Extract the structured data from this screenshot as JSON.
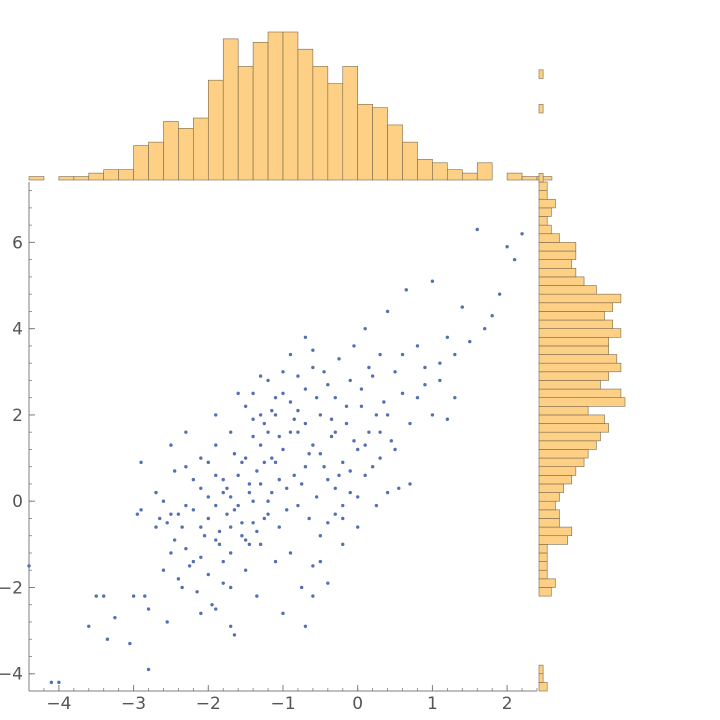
{
  "chart_data": {
    "type": "scatter",
    "title": "",
    "xlabel": "",
    "ylabel": "",
    "xlim": [
      -4.4,
      2.4
    ],
    "ylim": [
      -4.4,
      7.4
    ],
    "x_ticks": [
      -4,
      -3,
      -2,
      -1,
      0,
      1,
      2
    ],
    "y_ticks": [
      -4,
      -2,
      0,
      2,
      4,
      6
    ],
    "x_tick_labels": [
      "−4",
      "−3",
      "−2",
      "−1",
      "0",
      "1",
      "2"
    ],
    "y_tick_labels": [
      "−4",
      "−2",
      "0",
      "2",
      "4",
      "6"
    ],
    "grid": false,
    "legend": "none",
    "colors": {
      "points": "#5470b4",
      "hist_fill": "#fdd086",
      "hist_stroke": "#7a6a4a",
      "axis": "#7f7f7f",
      "tick_text": "#555555"
    },
    "points": [
      [
        -4.4,
        -1.5
      ],
      [
        -4.1,
        -4.2
      ],
      [
        -4.0,
        -4.2
      ],
      [
        -3.6,
        -2.9
      ],
      [
        -3.5,
        -2.2
      ],
      [
        -3.4,
        -2.2
      ],
      [
        -3.35,
        -3.2
      ],
      [
        -3.25,
        -2.7
      ],
      [
        -3.05,
        -3.3
      ],
      [
        -3.0,
        -2.2
      ],
      [
        -2.95,
        -0.3
      ],
      [
        -2.9,
        -0.2
      ],
      [
        -2.85,
        -2.2
      ],
      [
        -2.8,
        -3.9
      ],
      [
        -2.8,
        -2.5
      ],
      [
        -2.7,
        -0.6
      ],
      [
        -2.65,
        -0.4
      ],
      [
        -2.6,
        0.0
      ],
      [
        -2.55,
        -0.5
      ],
      [
        -2.55,
        -2.8
      ],
      [
        -2.5,
        -1.2
      ],
      [
        -2.45,
        -0.9
      ],
      [
        -2.45,
        0.7
      ],
      [
        -2.4,
        -0.3
      ],
      [
        -2.35,
        -0.6
      ],
      [
        -2.35,
        -2.0
      ],
      [
        -2.3,
        -1.1
      ],
      [
        -2.3,
        0.8
      ],
      [
        -2.25,
        -1.5
      ],
      [
        -2.2,
        -0.2
      ],
      [
        -2.15,
        -2.1
      ],
      [
        -2.1,
        0.3
      ],
      [
        -2.1,
        -1.3
      ],
      [
        -2.05,
        -0.8
      ],
      [
        -2.0,
        -0.4
      ],
      [
        -2.0,
        0.9
      ],
      [
        -1.95,
        -2.4
      ],
      [
        -1.9,
        -0.1
      ],
      [
        -1.9,
        1.3
      ],
      [
        -1.85,
        -0.7
      ],
      [
        -1.8,
        -1.9
      ],
      [
        -1.8,
        0.5
      ],
      [
        -1.75,
        -0.3
      ],
      [
        -1.7,
        -1.2
      ],
      [
        -1.7,
        0.1
      ],
      [
        -1.65,
        -3.1
      ],
      [
        -1.6,
        0.6
      ],
      [
        -1.55,
        -0.8
      ],
      [
        -1.5,
        1.0
      ],
      [
        -1.5,
        -1.6
      ],
      [
        -1.45,
        0.2
      ],
      [
        -1.4,
        -0.5
      ],
      [
        -1.4,
        1.5
      ],
      [
        -1.35,
        -2.2
      ],
      [
        -1.3,
        0.4
      ],
      [
        -1.3,
        -1.0
      ],
      [
        -1.25,
        1.8
      ],
      [
        -1.2,
        0.0
      ],
      [
        -1.2,
        -0.3
      ],
      [
        -1.15,
        2.1
      ],
      [
        -1.1,
        -1.4
      ],
      [
        -1.1,
        0.9
      ],
      [
        -1.05,
        -0.6
      ],
      [
        -1.0,
        1.2
      ],
      [
        -1.0,
        -2.6
      ],
      [
        -0.95,
        0.3
      ],
      [
        -0.9,
        2.3
      ],
      [
        -0.9,
        -1.2
      ],
      [
        -0.85,
        0.6
      ],
      [
        -0.8,
        -0.1
      ],
      [
        -0.8,
        1.6
      ],
      [
        -0.75,
        -2.0
      ],
      [
        -0.7,
        0.8
      ],
      [
        -0.7,
        2.6
      ],
      [
        -0.65,
        -0.4
      ],
      [
        -0.6,
        1.3
      ],
      [
        -0.6,
        -1.5
      ],
      [
        -0.55,
        0.1
      ],
      [
        -0.5,
        2.0
      ],
      [
        -0.5,
        -0.8
      ],
      [
        -0.45,
        3.0
      ],
      [
        -0.4,
        0.5
      ],
      [
        -0.4,
        -1.9
      ],
      [
        -0.35,
        1.5
      ],
      [
        -0.3,
        2.4
      ],
      [
        -0.3,
        -0.3
      ],
      [
        -0.25,
        3.3
      ],
      [
        -0.2,
        0.9
      ],
      [
        -0.2,
        -1.0
      ],
      [
        -0.15,
        1.8
      ],
      [
        -0.1,
        2.8
      ],
      [
        -0.1,
        0.2
      ],
      [
        -0.05,
        3.6
      ],
      [
        0.0,
        1.2
      ],
      [
        0.0,
        -0.6
      ],
      [
        0.05,
        2.2
      ],
      [
        0.1,
        4.0
      ],
      [
        0.1,
        0.6
      ],
      [
        0.15,
        1.6
      ],
      [
        0.2,
        2.9
      ],
      [
        0.25,
        -0.1
      ],
      [
        0.3,
        3.4
      ],
      [
        0.3,
        1.0
      ],
      [
        0.35,
        2.3
      ],
      [
        0.4,
        4.4
      ],
      [
        0.45,
        1.4
      ],
      [
        0.5,
        3.0
      ],
      [
        0.55,
        0.3
      ],
      [
        0.6,
        2.5
      ],
      [
        0.65,
        4.9
      ],
      [
        0.7,
        1.8
      ],
      [
        0.8,
        3.6
      ],
      [
        0.9,
        2.7
      ],
      [
        1.0,
        5.1
      ],
      [
        1.1,
        3.2
      ],
      [
        1.2,
        3.8
      ],
      [
        1.3,
        2.4
      ],
      [
        1.4,
        4.5
      ],
      [
        1.5,
        3.7
      ],
      [
        1.6,
        6.3
      ],
      [
        -1.65,
        -0.2
      ],
      [
        -1.55,
        0.9
      ],
      [
        -1.45,
        -1.0
      ],
      [
        -1.35,
        0.7
      ],
      [
        -1.25,
        -0.4
      ],
      [
        -1.15,
        1.0
      ],
      [
        -1.05,
        0.5
      ],
      [
        -0.95,
        -0.2
      ],
      [
        -0.85,
        1.9
      ],
      [
        -0.75,
        0.4
      ],
      [
        -0.65,
        1.1
      ],
      [
        -0.55,
        2.4
      ],
      [
        -0.45,
        0.8
      ],
      [
        -0.35,
        1.9
      ],
      [
        -0.25,
        0.6
      ],
      [
        -0.15,
        2.2
      ],
      [
        -0.05,
        1.4
      ],
      [
        0.05,
        2.6
      ],
      [
        0.15,
        3.1
      ],
      [
        0.25,
        2.0
      ],
      [
        -1.9,
        0.6
      ],
      [
        -1.85,
        -1.0
      ],
      [
        -1.75,
        0.3
      ],
      [
        -1.65,
        1.1
      ],
      [
        -1.55,
        -0.5
      ],
      [
        -1.45,
        0.4
      ],
      [
        -1.35,
        -0.7
      ],
      [
        -1.25,
        0.9
      ],
      [
        -1.15,
        0.2
      ],
      [
        -1.05,
        1.5
      ],
      [
        -2.2,
        0.5
      ],
      [
        -2.1,
        -0.6
      ],
      [
        -2.0,
        0.1
      ],
      [
        -1.9,
        -0.9
      ],
      [
        -1.8,
        0.2
      ],
      [
        -1.7,
        -0.6
      ],
      [
        -1.6,
        -0.1
      ],
      [
        -1.5,
        -0.9
      ],
      [
        -1.4,
        0.0
      ],
      [
        -1.3,
        1.3
      ],
      [
        -2.6,
        -1.6
      ],
      [
        -2.5,
        -0.3
      ],
      [
        -2.4,
        -1.8
      ],
      [
        -2.3,
        -0.1
      ],
      [
        -2.2,
        -1.4
      ],
      [
        -2.1,
        -2.6
      ],
      [
        -2.0,
        -1.7
      ],
      [
        -1.9,
        -2.5
      ],
      [
        -1.8,
        -1.4
      ],
      [
        -1.7,
        -2.0
      ],
      [
        -1.2,
        1.6
      ],
      [
        -1.1,
        2.0
      ],
      [
        -1.0,
        2.5
      ],
      [
        -0.9,
        1.6
      ],
      [
        -0.8,
        2.9
      ],
      [
        -0.7,
        1.8
      ],
      [
        -0.6,
        3.1
      ],
      [
        -0.5,
        1.1
      ],
      [
        -0.4,
        2.7
      ],
      [
        -0.3,
        1.6
      ],
      [
        0.4,
        2.0
      ],
      [
        0.5,
        1.2
      ],
      [
        0.6,
        3.4
      ],
      [
        0.7,
        0.4
      ],
      [
        0.8,
        2.4
      ],
      [
        0.9,
        3.1
      ],
      [
        1.0,
        2.0
      ],
      [
        1.1,
        2.8
      ],
      [
        1.2,
        1.9
      ],
      [
        1.3,
        3.4
      ],
      [
        -0.6,
        -2.2
      ],
      [
        -0.5,
        -1.4
      ],
      [
        -0.4,
        -0.5
      ],
      [
        -0.3,
        0.3
      ],
      [
        -0.2,
        -0.1
      ],
      [
        -0.1,
        0.7
      ],
      [
        0.0,
        0.1
      ],
      [
        0.1,
        1.3
      ],
      [
        0.2,
        0.8
      ],
      [
        0.3,
        1.6
      ],
      [
        -1.5,
        2.2
      ],
      [
        -1.4,
        2.5
      ],
      [
        -1.3,
        2.0
      ],
      [
        -1.2,
        2.8
      ],
      [
        -1.1,
        2.4
      ],
      [
        -1.0,
        3.0
      ],
      [
        -0.9,
        3.4
      ],
      [
        -0.8,
        2.1
      ],
      [
        -0.7,
        3.8
      ],
      [
        -0.6,
        3.5
      ],
      [
        -2.9,
        0.9
      ],
      [
        -2.7,
        0.2
      ],
      [
        -2.5,
        1.3
      ],
      [
        -2.3,
        1.6
      ],
      [
        -2.1,
        1.0
      ],
      [
        -1.9,
        2.0
      ],
      [
        -1.7,
        1.6
      ],
      [
        -1.6,
        2.5
      ],
      [
        -1.4,
        1.9
      ],
      [
        -1.3,
        2.9
      ],
      [
        2.0,
        5.9
      ],
      [
        2.1,
        5.6
      ],
      [
        2.2,
        6.2
      ],
      [
        1.9,
        4.8
      ],
      [
        1.8,
        4.3
      ],
      [
        1.7,
        4.0
      ],
      [
        -0.7,
        -2.9
      ],
      [
        -1.7,
        -2.9
      ],
      [
        -0.2,
        -0.4
      ],
      [
        0.4,
        0.2
      ]
    ],
    "x_hist": {
      "bin_width": 0.2,
      "start": -4.4,
      "counts": [
        1,
        0,
        1,
        1,
        2,
        3,
        3,
        10,
        11,
        17,
        15,
        18,
        29,
        41,
        33,
        40,
        43,
        43,
        38,
        33,
        28,
        33,
        22,
        21,
        16,
        11,
        6,
        5,
        3,
        2,
        5,
        0,
        2,
        1,
        1
      ]
    },
    "y_hist": {
      "bin_width": 0.2,
      "start": -4.4,
      "counts": [
        2,
        1,
        1,
        0,
        0,
        0,
        0,
        0,
        0,
        0,
        0,
        3,
        4,
        2,
        2,
        2,
        2,
        7,
        8,
        5,
        5,
        4,
        5,
        6,
        8,
        9,
        11,
        12,
        14,
        15,
        17,
        16,
        12,
        21,
        20,
        15,
        17,
        20,
        19,
        17,
        17,
        20,
        18,
        16,
        18,
        20,
        14,
        11,
        9,
        8,
        9,
        9,
        5,
        3,
        2,
        3,
        4,
        2,
        2,
        1,
        0,
        0,
        0,
        0,
        0,
        0,
        0,
        1,
        0,
        0,
        0,
        1
      ]
    }
  }
}
